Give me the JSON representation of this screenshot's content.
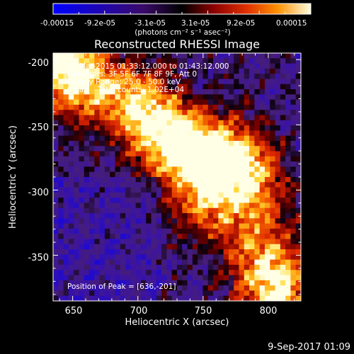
{
  "chart_data": {
    "type": "heatmap",
    "title": "Reconstructed RHESSI Image",
    "xlabel": "Heliocentric X (arcsec)",
    "ylabel": "Heliocentric Y (arcsec)",
    "xlim": [
      635,
      825
    ],
    "ylim": [
      -385,
      -195
    ],
    "x_ticks": [
      "650",
      "700",
      "750",
      "800"
    ],
    "y_ticks": [
      "-200",
      "-250",
      "-300",
      "-350"
    ],
    "colorbar": {
      "tick_labels": [
        "-0.00015",
        "-9.2e-05",
        "-3.1e-05",
        "3.1e-05",
        "9.2e-05",
        "0.00015"
      ],
      "range": [
        -0.00015,
        0.00015
      ],
      "unit": "(photons cm⁻² s⁻¹ asec⁻²)"
    },
    "annotations": {
      "time_range": "17-Mar-2015 01:33:12.000 to 01:43:12.000",
      "detectors": "Detectors: 3F 5F 6F 7F 8F 9F, Att 0",
      "energy": "Energy Range: 25.0 - 50.0 keV",
      "clean": "Clean    Total counts: 1.02E+04",
      "peak": "Position of Peak = [636,-201]"
    },
    "intensity_features": [
      {
        "x": 638,
        "y": -200,
        "level": 1.0
      },
      {
        "x": 660,
        "y": -220,
        "level": 0.75
      },
      {
        "x": 700,
        "y": -230,
        "level": 0.7
      },
      {
        "x": 715,
        "y": -255,
        "level": 0.8
      },
      {
        "x": 740,
        "y": -270,
        "level": 0.75
      },
      {
        "x": 765,
        "y": -275,
        "level": 0.9
      },
      {
        "x": 785,
        "y": -290,
        "level": 0.7
      },
      {
        "x": 750,
        "y": -310,
        "level": 0.6
      },
      {
        "x": 790,
        "y": -330,
        "level": 0.5
      },
      {
        "x": 800,
        "y": -365,
        "level": 0.65
      },
      {
        "x": 810,
        "y": -380,
        "level": 0.6
      }
    ]
  },
  "footer": {
    "timestamp": "9-Sep-2017 01:09"
  }
}
